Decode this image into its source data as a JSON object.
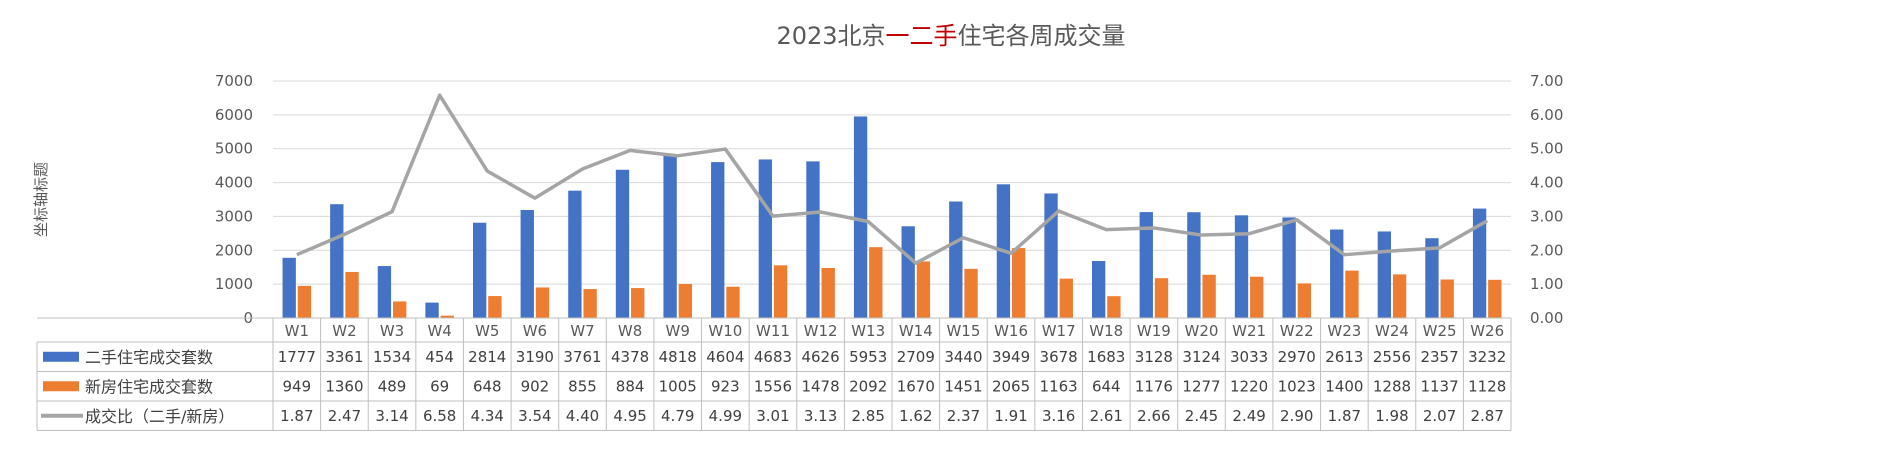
{
  "chart_data": {
    "type": "bar",
    "title_parts": [
      "2023北京",
      "一二手",
      "住宅各周成交量"
    ],
    "colors": {
      "title_accent": "#C00000",
      "second_hand": "#4472C4",
      "new_house": "#ED7D31",
      "ratio": "#A5A5A5",
      "grid": "#D9D9D9",
      "text": "#595959"
    },
    "ylabel_left": "坐标轴标题",
    "ylim_left": [
      0,
      7000
    ],
    "yticks_left": [
      "0",
      "1000",
      "2000",
      "3000",
      "4000",
      "5000",
      "6000",
      "7000"
    ],
    "ylim_right": [
      0,
      7
    ],
    "yticks_right": [
      "0.00",
      "1.00",
      "2.00",
      "3.00",
      "4.00",
      "5.00",
      "6.00",
      "7.00"
    ],
    "categories": [
      "W1",
      "W2",
      "W3",
      "W4",
      "W5",
      "W6",
      "W7",
      "W8",
      "W9",
      "W10",
      "W11",
      "W12",
      "W13",
      "W14",
      "W15",
      "W16",
      "W17",
      "W18",
      "W19",
      "W20",
      "W21",
      "W22",
      "W23",
      "W24",
      "W25",
      "W26"
    ],
    "series": [
      {
        "name": "二手住宅成交套数",
        "type": "bar",
        "axis": "left",
        "values": [
          1777,
          3361,
          1534,
          454,
          2814,
          3190,
          3761,
          4378,
          4818,
          4604,
          4683,
          4626,
          5953,
          2709,
          3440,
          3949,
          3678,
          1683,
          3128,
          3124,
          3033,
          2970,
          2613,
          2556,
          2357,
          3232
        ],
        "labels": [
          "1777",
          "3361",
          "1534",
          "454",
          "2814",
          "3190",
          "3761",
          "4378",
          "4818",
          "4604",
          "4683",
          "4626",
          "5953",
          "2709",
          "3440",
          "3949",
          "3678",
          "1683",
          "3128",
          "3124",
          "3033",
          "2970",
          "2613",
          "2556",
          "2357",
          "3232"
        ]
      },
      {
        "name": "新房住宅成交套数",
        "type": "bar",
        "axis": "left",
        "values": [
          949,
          1360,
          489,
          69,
          648,
          902,
          855,
          884,
          1005,
          923,
          1556,
          1478,
          2092,
          1670,
          1451,
          2065,
          1163,
          644,
          1176,
          1277,
          1220,
          1023,
          1400,
          1288,
          1137,
          1128
        ],
        "labels": [
          "949",
          "1360",
          "489",
          "69",
          "648",
          "902",
          "855",
          "884",
          "1005",
          "923",
          "1556",
          "1478",
          "2092",
          "1670",
          "1451",
          "2065",
          "1163",
          "644",
          "1176",
          "1277",
          "1220",
          "1023",
          "1400",
          "1288",
          "1137",
          "1128"
        ]
      },
      {
        "name": "成交比（二手/新房）",
        "type": "line",
        "axis": "right",
        "values": [
          1.87,
          2.47,
          3.14,
          6.58,
          4.34,
          3.54,
          4.4,
          4.95,
          4.79,
          4.99,
          3.01,
          3.13,
          2.85,
          1.62,
          2.37,
          1.91,
          3.16,
          2.61,
          2.66,
          2.45,
          2.49,
          2.9,
          1.87,
          1.98,
          2.07,
          2.87
        ],
        "labels": [
          "1.87",
          "2.47",
          "3.14",
          "6.58",
          "4.34",
          "3.54",
          "4.40",
          "4.95",
          "4.79",
          "4.99",
          "3.01",
          "3.13",
          "2.85",
          "1.62",
          "2.37",
          "1.91",
          "3.16",
          "2.61",
          "2.66",
          "2.45",
          "2.49",
          "2.90",
          "1.87",
          "1.98",
          "2.07",
          "2.87"
        ]
      }
    ],
    "grid": true,
    "legend": "data-table"
  }
}
